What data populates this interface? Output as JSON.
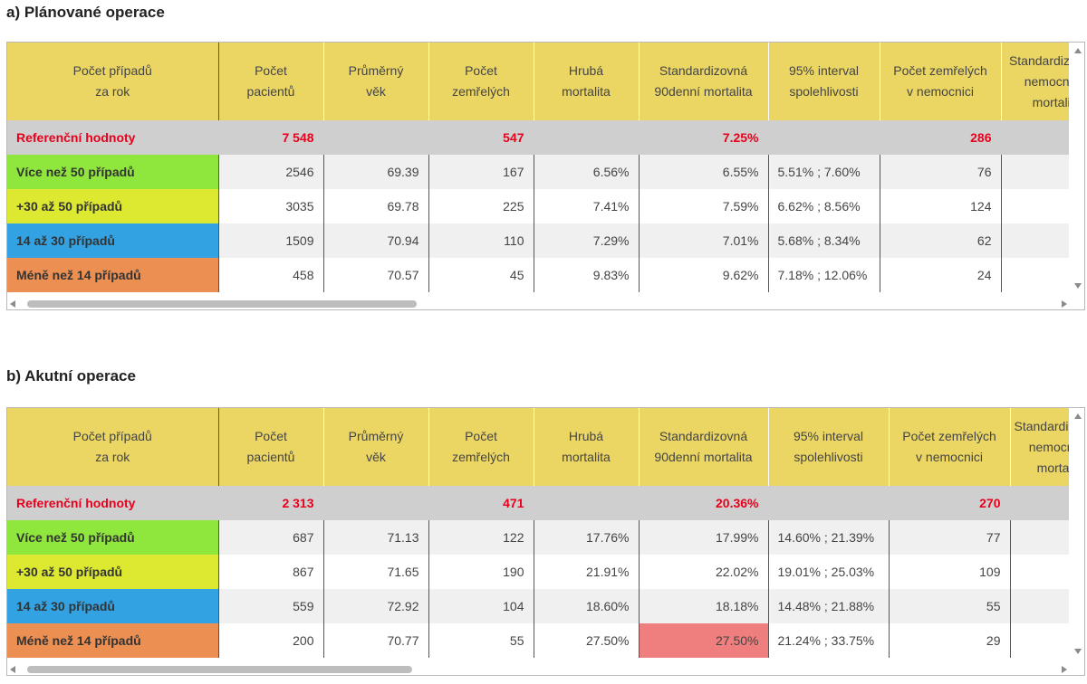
{
  "headers": [
    [
      "Počet případů",
      "za rok"
    ],
    [
      "Počet",
      "pacientů"
    ],
    [
      "Průměrný",
      "věk"
    ],
    [
      "Počet",
      "zemřelých"
    ],
    [
      "Hrubá",
      "mortalita"
    ],
    [
      "Standardizovná",
      "90denní mortalita"
    ],
    [
      "95% interval",
      "spolehlivosti"
    ],
    [
      "Počet zemřelých",
      "v nemocnici"
    ],
    [
      "Standardizovaná",
      "nemocniční",
      "mortalita"
    ]
  ],
  "colors": {
    "header": "#ebd664",
    "reference_row": "#cfcfcf",
    "reference_text": "#e8001c",
    "cat_over50": "#8fe63c",
    "cat_30to50": "#dde831",
    "cat_14to30": "#33a2e2",
    "cat_under14": "#ec8f52",
    "highlight": "#ef7f7f"
  },
  "section_a": {
    "title": "a) Plánované operace",
    "reference": {
      "label": "Referenční hodnoty",
      "patients": "7 548",
      "deaths": "547",
      "std90": "7.25%",
      "hosp_deaths": "286"
    },
    "rows": [
      {
        "label": "Více než 50 případů",
        "cat": "green",
        "patients": "2546",
        "age": "69.39",
        "deaths": "167",
        "crude": "6.56%",
        "std90": "6.55%",
        "ci": "5.51% ; 7.60%",
        "hosp_deaths": "76"
      },
      {
        "label": "+30 až 50 případů",
        "cat": "yellow",
        "patients": "3035",
        "age": "69.78",
        "deaths": "225",
        "crude": "7.41%",
        "std90": "7.59%",
        "ci": "6.62% ; 8.56%",
        "hosp_deaths": "124"
      },
      {
        "label": "14 až 30 případů",
        "cat": "blue",
        "patients": "1509",
        "age": "70.94",
        "deaths": "110",
        "crude": "7.29%",
        "std90": "7.01%",
        "ci": "5.68% ; 8.34%",
        "hosp_deaths": "62"
      },
      {
        "label": "Méně než 14 případů",
        "cat": "orange",
        "patients": "458",
        "age": "70.57",
        "deaths": "45",
        "crude": "9.83%",
        "std90": "9.62%",
        "ci": "7.18% ; 12.06%",
        "hosp_deaths": "24"
      }
    ]
  },
  "section_b": {
    "title": "b) Akutní operace",
    "reference": {
      "label": "Referenční hodnoty",
      "patients": "2 313",
      "deaths": "471",
      "std90": "20.36%",
      "hosp_deaths": "270"
    },
    "rows": [
      {
        "label": "Více než 50 případů",
        "cat": "green",
        "patients": "687",
        "age": "71.13",
        "deaths": "122",
        "crude": "17.76%",
        "std90": "17.99%",
        "ci": "14.60% ; 21.39%",
        "hosp_deaths": "77"
      },
      {
        "label": "+30 až 50 případů",
        "cat": "yellow",
        "patients": "867",
        "age": "71.65",
        "deaths": "190",
        "crude": "21.91%",
        "std90": "22.02%",
        "ci": "19.01% ; 25.03%",
        "hosp_deaths": "109"
      },
      {
        "label": "14 až 30 případů",
        "cat": "blue",
        "patients": "559",
        "age": "72.92",
        "deaths": "104",
        "crude": "18.60%",
        "std90": "18.18%",
        "ci": "14.48% ; 21.88%",
        "hosp_deaths": "55"
      },
      {
        "label": "Méně než 14 případů",
        "cat": "orange",
        "patients": "200",
        "age": "70.77",
        "deaths": "55",
        "crude": "27.50%",
        "std90": "27.50%",
        "std90_highlight": true,
        "ci": "21.24% ; 33.75%",
        "hosp_deaths": "29"
      }
    ]
  }
}
